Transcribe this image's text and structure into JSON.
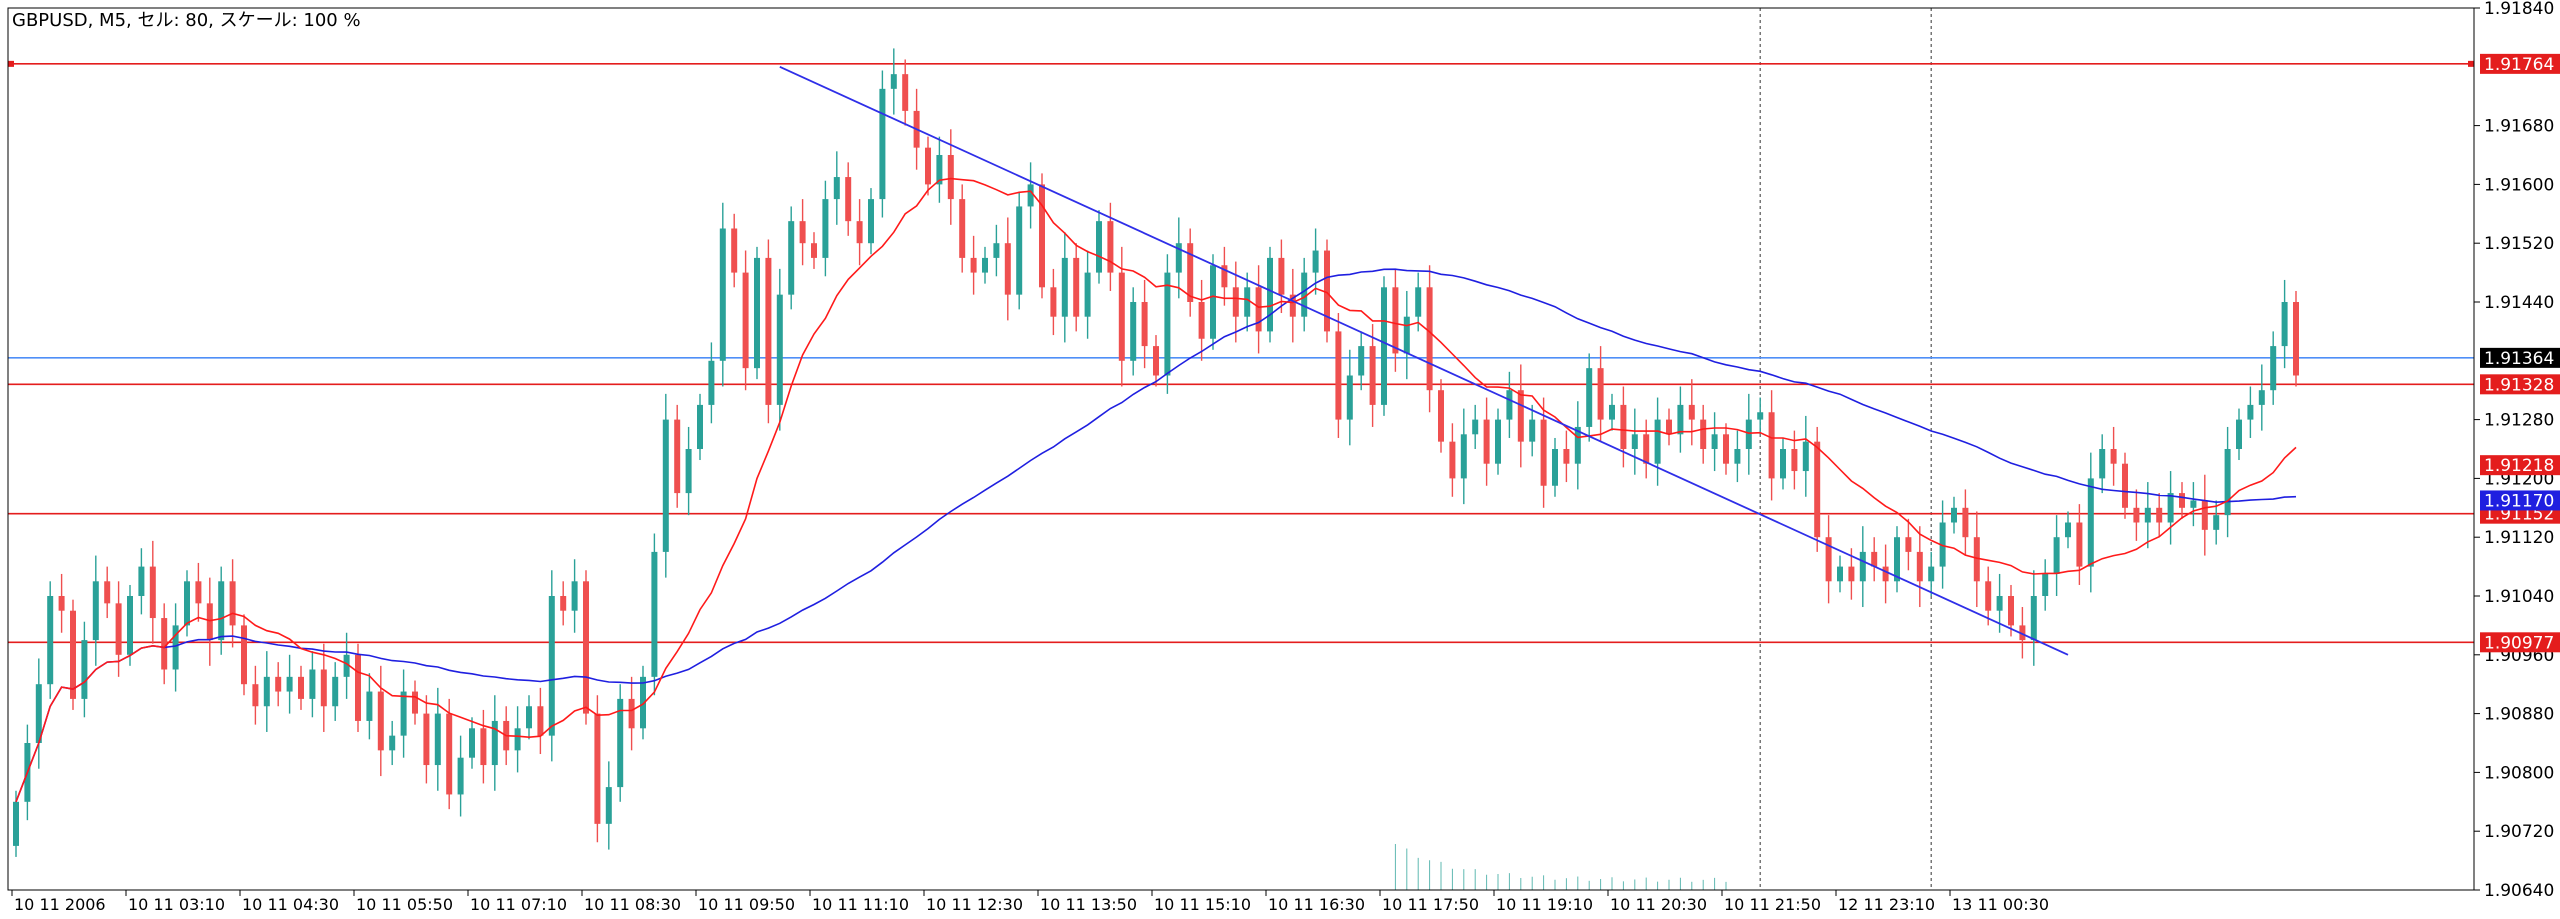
{
  "header": {
    "symbol": "GBPUSD, M5, セル: 80, スケール: 100 %"
  },
  "colors": {
    "bull": "#2aa198",
    "bear": "#ef4f4f",
    "ma_fast": "#ff1a1a",
    "ma_slow": "#1f1fe0",
    "trendline": "#2f2fe8",
    "bid_line": "#4f8ff7",
    "hline": "#e41d1d",
    "volume": "#2aa198",
    "grid": "#000000"
  },
  "chart_data": {
    "type": "candlestick",
    "symbol": "GBPUSD",
    "timeframe": "M5",
    "ylim": [
      1.9064,
      1.9184
    ],
    "y_ticks": [
      "1.91840",
      "1.91680",
      "1.91600",
      "1.91520",
      "1.91440",
      "1.91280",
      "1.91200",
      "1.91120",
      "1.91040",
      "1.90960",
      "1.90880",
      "1.90800",
      "1.90720",
      "1.90640"
    ],
    "x_ticks": [
      "10 11 2006",
      "10 11 03:10",
      "10 11 04:30",
      "10 11 05:50",
      "10 11 07:10",
      "10 11 08:30",
      "10 11 09:50",
      "10 11 11:10",
      "10 11 12:30",
      "10 11 13:50",
      "10 11 15:10",
      "10 11 16:30",
      "10 11 17:50",
      "10 11 19:10",
      "10 11 20:30",
      "10 11 21:50",
      "12 11 23:10",
      "13 11 00:30"
    ],
    "horizontal_levels": [
      {
        "value": 1.91764,
        "label": "1.91764",
        "color": "#e41d1d"
      },
      {
        "value": 1.91328,
        "label": "1.91328",
        "color": "#e41d1d"
      },
      {
        "value": 1.91152,
        "label": "1.91152",
        "color": "#e41d1d"
      },
      {
        "value": 1.90977,
        "label": "1.90977",
        "color": "#e41d1d"
      }
    ],
    "bid_level": {
      "value": 1.91364,
      "label": "1.91364"
    },
    "indicator_tags": [
      {
        "value": 1.91218,
        "label": "1.91218",
        "color": "#e41d1d"
      },
      {
        "value": 1.9117,
        "label": "1.91170",
        "color": "#1f1fe0"
      }
    ],
    "vertical_markers": [
      153,
      168
    ],
    "trendline": [
      [
        67,
        1.9176
      ],
      [
        180,
        1.9096
      ]
    ],
    "close": [
      1.9076,
      1.9084,
      1.9092,
      1.9104,
      1.9102,
      1.909,
      1.9098,
      1.9106,
      1.9103,
      1.9096,
      1.9104,
      1.9108,
      1.9101,
      1.9094,
      1.91,
      1.9106,
      1.9103,
      1.9098,
      1.9106,
      1.91,
      1.9092,
      1.9089,
      1.9093,
      1.9091,
      1.9093,
      1.909,
      1.9094,
      1.9089,
      1.9093,
      1.9096,
      1.9087,
      1.9091,
      1.9083,
      1.9085,
      1.9091,
      1.9088,
      1.9081,
      1.9088,
      1.9077,
      1.9082,
      1.9086,
      1.9081,
      1.9087,
      1.9083,
      1.9086,
      1.9089,
      1.9085,
      1.9104,
      1.9102,
      1.9106,
      1.9088,
      1.9073,
      1.9078,
      1.909,
      1.9086,
      1.9093,
      1.911,
      1.9128,
      1.9118,
      1.9124,
      1.913,
      1.9136,
      1.9154,
      1.9148,
      1.9135,
      1.915,
      1.913,
      1.9145,
      1.9155,
      1.9152,
      1.915,
      1.9158,
      1.9161,
      1.9155,
      1.9152,
      1.9158,
      1.9173,
      1.9175,
      1.917,
      1.9165,
      1.916,
      1.9164,
      1.9158,
      1.915,
      1.9148,
      1.915,
      1.9152,
      1.9145,
      1.9157,
      1.916,
      1.9146,
      1.9142,
      1.915,
      1.9142,
      1.9148,
      1.9155,
      1.9148,
      1.9136,
      1.9144,
      1.9138,
      1.9134,
      1.9148,
      1.9152,
      1.9144,
      1.9139,
      1.9149,
      1.9146,
      1.9142,
      1.9146,
      1.914,
      1.915,
      1.9145,
      1.9142,
      1.9148,
      1.9151,
      1.914,
      1.9128,
      1.9134,
      1.9138,
      1.913,
      1.9146,
      1.9137,
      1.9142,
      1.9146,
      1.9132,
      1.9125,
      1.912,
      1.9126,
      1.9128,
      1.9122,
      1.9128,
      1.9132,
      1.9125,
      1.9128,
      1.9119,
      1.9124,
      1.9122,
      1.9127,
      1.9135,
      1.9128,
      1.913,
      1.9124,
      1.9126,
      1.9122,
      1.9128,
      1.9126,
      1.913,
      1.9128,
      1.9124,
      1.9126,
      1.9122,
      1.9124,
      1.9128,
      1.9129,
      1.912,
      1.9124,
      1.9121,
      1.9125,
      1.9112,
      1.9106,
      1.9108,
      1.9106,
      1.911,
      1.9108,
      1.9106,
      1.9112,
      1.911,
      1.9106,
      1.9108,
      1.9114,
      1.9116,
      1.9112,
      1.9106,
      1.9102,
      1.9104,
      1.91,
      1.9098,
      1.9104,
      1.9107,
      1.9112,
      1.9114,
      1.9108,
      1.912,
      1.9124,
      1.9122,
      1.9116,
      1.9114,
      1.9116,
      1.9114,
      1.9118,
      1.9116,
      1.9117,
      1.9113,
      1.9115,
      1.9124,
      1.9128,
      1.913,
      1.9132,
      1.9138,
      1.9144,
      1.9134
    ]
  }
}
